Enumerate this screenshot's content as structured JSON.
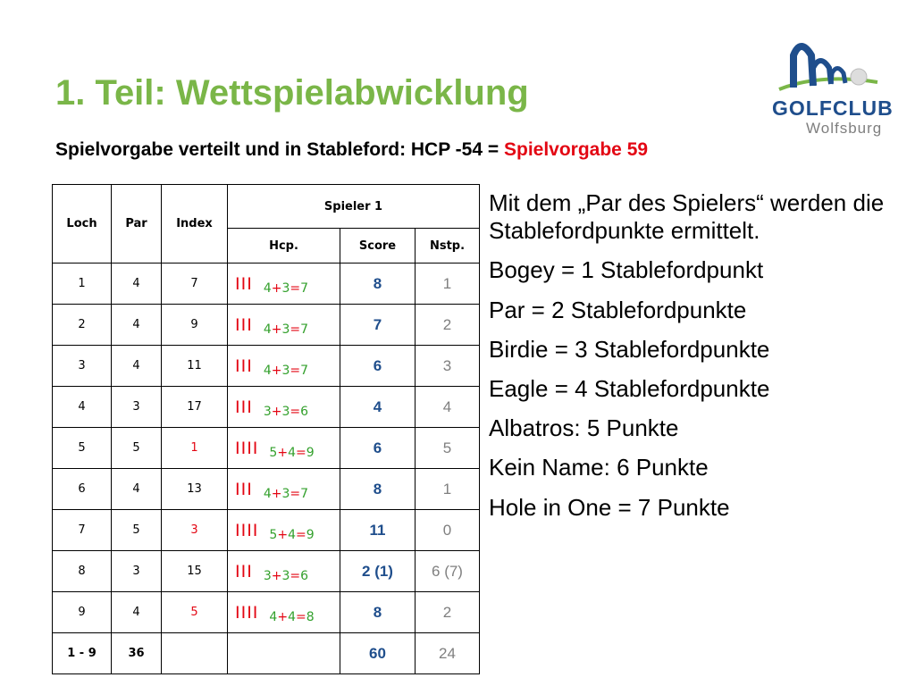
{
  "title": "1. Teil: Wettspielabwicklung",
  "subtitle": {
    "prefix": "Spielvorgabe verteilt und in Stableford: HCP -54 = ",
    "highlight": "Spielvorgabe 59"
  },
  "logo": {
    "name": "GOLFCLUB",
    "sub": "Wolfsburg",
    "colors": {
      "primary": "#1f4e8c",
      "accent": "#7ab648"
    }
  },
  "colors": {
    "title": "#7ab648",
    "highlight": "#e30613",
    "score": "#1f4e8c",
    "calc": "#33a02c"
  },
  "table": {
    "headers": {
      "loch": "Loch",
      "par": "Par",
      "index": "Index",
      "spieler": "Spieler 1",
      "hcp": "Hcp.",
      "score": "Score",
      "nstp": "Nstp."
    },
    "rows": [
      {
        "loch": "1",
        "par": "4",
        "index": "7",
        "index_red": false,
        "strokes": "III",
        "calc": {
          "a": "4",
          "op1": "+",
          "b": "3",
          "op2": "=",
          "c": "7"
        },
        "score": "8",
        "nstp": "1"
      },
      {
        "loch": "2",
        "par": "4",
        "index": "9",
        "index_red": false,
        "strokes": "III",
        "calc": {
          "a": "4",
          "op1": "+",
          "b": "3",
          "op2": "=",
          "c": "7"
        },
        "score": "7",
        "nstp": "2"
      },
      {
        "loch": "3",
        "par": "4",
        "index": "11",
        "index_red": false,
        "strokes": "III",
        "calc": {
          "a": "4",
          "op1": "+",
          "b": "3",
          "op2": "=",
          "c": "7"
        },
        "score": "6",
        "nstp": "3"
      },
      {
        "loch": "4",
        "par": "3",
        "index": "17",
        "index_red": false,
        "strokes": "III",
        "calc": {
          "a": "3",
          "op1": "+",
          "b": "3",
          "op2": "=",
          "c": "6"
        },
        "score": "4",
        "nstp": "4"
      },
      {
        "loch": "5",
        "par": "5",
        "index": "1",
        "index_red": true,
        "strokes": "IIII",
        "calc": {
          "a": "5",
          "op1": "+",
          "b": "4",
          "op2": "=",
          "c": "9"
        },
        "score": "6",
        "nstp": "5"
      },
      {
        "loch": "6",
        "par": "4",
        "index": "13",
        "index_red": false,
        "strokes": "III",
        "calc": {
          "a": "4",
          "op1": "+",
          "b": "3",
          "op2": "=",
          "c": "7"
        },
        "score": "8",
        "nstp": "1"
      },
      {
        "loch": "7",
        "par": "5",
        "index": "3",
        "index_red": true,
        "strokes": "IIII",
        "calc": {
          "a": "5",
          "op1": "+",
          "b": "4",
          "op2": "=",
          "c": "9"
        },
        "score": "11",
        "nstp": "0"
      },
      {
        "loch": "8",
        "par": "3",
        "index": "15",
        "index_red": false,
        "strokes": "III",
        "calc": {
          "a": "3",
          "op1": "+",
          "b": "3",
          "op2": "=",
          "c": "6"
        },
        "score": "2 (1)",
        "nstp": "6 (7)"
      },
      {
        "loch": "9",
        "par": "4",
        "index": "5",
        "index_red": true,
        "strokes": "IIII",
        "calc": {
          "a": "4",
          "op1": "+",
          "b": "4",
          "op2": "=",
          "c": "8"
        },
        "score": "8",
        "nstp": "2"
      }
    ],
    "total": {
      "loch": "1 - 9",
      "par": "36",
      "score": "60",
      "nstp": "24"
    }
  },
  "explanation": [
    "Mit dem „Par des Spielers“ werden die Stablefordpunkte ermittelt.",
    "Bogey = 1 Stablefordpunkt",
    "Par = 2 Stablefordpunkte",
    "Birdie = 3 Stablefordpunkte",
    "Eagle = 4 Stablefordpunkte",
    "Albatros: 5 Punkte",
    "Kein Name: 6 Punkte",
    "Hole in One = 7 Punkte"
  ]
}
